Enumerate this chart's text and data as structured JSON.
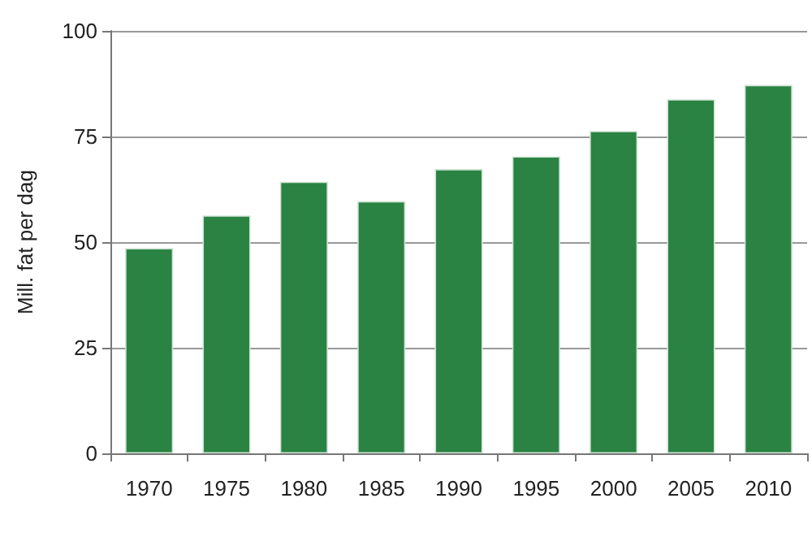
{
  "chart_data": {
    "type": "bar",
    "ylabel": "Mill. fat per dag",
    "categories": [
      "1970",
      "1975",
      "1980",
      "1985",
      "1990",
      "1995",
      "2000",
      "2005",
      "2010"
    ],
    "values": [
      48.6,
      56.3,
      64.3,
      59.7,
      67.3,
      70.3,
      76.3,
      83.8,
      87.2
    ],
    "color": "#2a8243",
    "ylim": [
      0,
      100
    ],
    "yticks": [
      0,
      25,
      50,
      75,
      100
    ],
    "grid": "y"
  }
}
